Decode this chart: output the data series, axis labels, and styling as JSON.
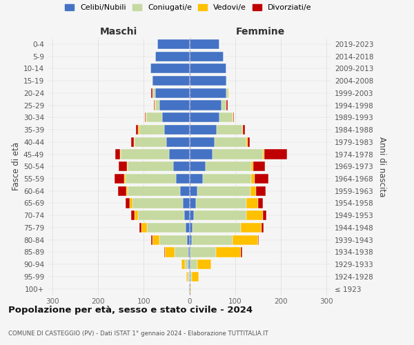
{
  "age_groups": [
    "100+",
    "95-99",
    "90-94",
    "85-89",
    "80-84",
    "75-79",
    "70-74",
    "65-69",
    "60-64",
    "55-59",
    "50-54",
    "45-49",
    "40-44",
    "35-39",
    "30-34",
    "25-29",
    "20-24",
    "15-19",
    "10-14",
    "5-9",
    "0-4"
  ],
  "birth_years": [
    "≤ 1923",
    "1924-1928",
    "1929-1933",
    "1934-1938",
    "1939-1943",
    "1944-1948",
    "1949-1953",
    "1954-1958",
    "1959-1963",
    "1964-1968",
    "1969-1973",
    "1974-1978",
    "1979-1983",
    "1984-1988",
    "1989-1993",
    "1994-1998",
    "1999-2003",
    "2004-2008",
    "2009-2013",
    "2014-2018",
    "2019-2023"
  ],
  "male": {
    "celibi": [
      1,
      1,
      2,
      3,
      5,
      8,
      12,
      15,
      20,
      30,
      35,
      45,
      50,
      55,
      60,
      65,
      75,
      80,
      85,
      75,
      70
    ],
    "coniugati": [
      1,
      3,
      8,
      30,
      60,
      85,
      100,
      110,
      115,
      110,
      100,
      105,
      70,
      55,
      35,
      10,
      5,
      2,
      0,
      0,
      0
    ],
    "vedovi": [
      0,
      3,
      8,
      20,
      15,
      12,
      8,
      5,
      3,
      2,
      2,
      2,
      2,
      2,
      1,
      1,
      1,
      0,
      0,
      0,
      0
    ],
    "divorziati": [
      0,
      0,
      0,
      2,
      4,
      5,
      8,
      10,
      18,
      22,
      18,
      10,
      5,
      5,
      2,
      2,
      2,
      0,
      0,
      0,
      0
    ]
  },
  "female": {
    "nubili": [
      1,
      1,
      2,
      3,
      5,
      7,
      10,
      15,
      18,
      30,
      35,
      50,
      55,
      60,
      65,
      70,
      80,
      80,
      80,
      75,
      65
    ],
    "coniugate": [
      1,
      4,
      15,
      55,
      90,
      105,
      115,
      110,
      115,
      105,
      100,
      110,
      70,
      55,
      30,
      10,
      5,
      2,
      0,
      0,
      0
    ],
    "vedove": [
      2,
      15,
      30,
      55,
      55,
      45,
      35,
      25,
      12,
      8,
      5,
      3,
      2,
      2,
      1,
      1,
      1,
      0,
      0,
      0,
      0
    ],
    "divorziate": [
      0,
      0,
      1,
      2,
      2,
      5,
      8,
      10,
      22,
      30,
      25,
      50,
      5,
      5,
      2,
      2,
      1,
      0,
      0,
      0,
      0
    ]
  },
  "colors": {
    "celibi": "#4472c4",
    "coniugati": "#c5d9a0",
    "vedovi": "#ffc000",
    "divorziati": "#c00000"
  },
  "legend_labels": [
    "Celibi/Nubili",
    "Coniugati/e",
    "Vedovi/e",
    "Divorziati/e"
  ],
  "title_main": "Popolazione per età, sesso e stato civile - 2024",
  "title_sub": "COMUNE DI CASTEGGIO (PV) - Dati ISTAT 1° gennaio 2024 - Elaborazione TUTTITALIA.IT",
  "xlabel_left": "Maschi",
  "xlabel_right": "Femmine",
  "ylabel_left": "Fasce di età",
  "ylabel_right": "Anni di nascita",
  "xlim": 310,
  "bg_color": "#f5f5f5"
}
